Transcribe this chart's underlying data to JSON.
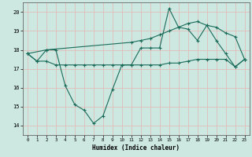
{
  "xlabel": "Humidex (Indice chaleur)",
  "xlim": [
    -0.5,
    23.5
  ],
  "ylim": [
    13.5,
    20.5
  ],
  "yticks": [
    14,
    15,
    16,
    17,
    18,
    19,
    20
  ],
  "xticks": [
    0,
    1,
    2,
    3,
    4,
    5,
    6,
    7,
    8,
    9,
    10,
    11,
    12,
    13,
    14,
    15,
    16,
    17,
    18,
    19,
    20,
    21,
    22,
    23
  ],
  "bg_color": "#cce8e0",
  "grid_color": "#b0d8cc",
  "line_color": "#1a6b5a",
  "series1_x": [
    0,
    1,
    2,
    3,
    4,
    5,
    6,
    7,
    8,
    9,
    10,
    11,
    12,
    13,
    14,
    15,
    16,
    17,
    18,
    19,
    20,
    21,
    22,
    23
  ],
  "series1_y": [
    17.8,
    17.4,
    18.0,
    18.0,
    16.1,
    15.1,
    14.8,
    14.1,
    14.5,
    15.9,
    17.2,
    17.2,
    18.1,
    18.1,
    18.1,
    20.2,
    19.2,
    19.1,
    18.5,
    19.3,
    18.5,
    17.8,
    17.1,
    17.5
  ],
  "series2_x": [
    0,
    2,
    11,
    12,
    13,
    14,
    15,
    16,
    17,
    18,
    19,
    20,
    21,
    22,
    23
  ],
  "series2_y": [
    17.8,
    18.0,
    18.4,
    18.5,
    18.6,
    18.8,
    19.0,
    19.2,
    19.4,
    19.5,
    19.3,
    19.2,
    18.9,
    18.7,
    17.5
  ],
  "series3_x": [
    0,
    1,
    2,
    3,
    4,
    5,
    6,
    7,
    8,
    9,
    10,
    11,
    12,
    13,
    14,
    15,
    16,
    17,
    18,
    19,
    20,
    21,
    22,
    23
  ],
  "series3_y": [
    17.8,
    17.4,
    17.4,
    17.2,
    17.2,
    17.2,
    17.2,
    17.2,
    17.2,
    17.2,
    17.2,
    17.2,
    17.2,
    17.2,
    17.2,
    17.3,
    17.3,
    17.4,
    17.5,
    17.5,
    17.5,
    17.5,
    17.1,
    17.5
  ]
}
